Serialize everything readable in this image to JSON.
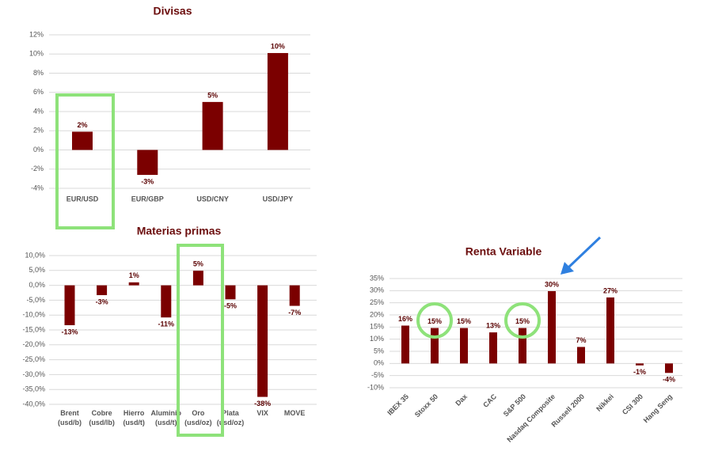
{
  "chart_data": [
    {
      "type": "bar",
      "title": "Divisas",
      "categories": [
        "EUR/USD",
        "EUR/GBP",
        "USD/CNY",
        "USD/JPY"
      ],
      "values": [
        1.9,
        -2.6,
        5.0,
        10.1
      ],
      "value_labels": [
        "2%",
        "-3%",
        "5%",
        "10%"
      ],
      "color": "#7b0000",
      "ylim": [
        -4,
        12
      ],
      "yticks": [
        {
          "value": -4,
          "label": "-4%"
        },
        {
          "value": -2,
          "label": "-2%"
        },
        {
          "value": 0,
          "label": "0%"
        },
        {
          "value": 2,
          "label": "2%"
        },
        {
          "value": 4,
          "label": "4%"
        },
        {
          "value": 6,
          "label": "6%"
        },
        {
          "value": 8,
          "label": "8%"
        },
        {
          "value": 10,
          "label": "10%"
        },
        {
          "value": 12,
          "label": "12%"
        }
      ],
      "grid": true
    },
    {
      "type": "bar",
      "title": "Materias primas",
      "categories": [
        "Brent\n(usd/b)",
        "Cobre\n(usd/lb)",
        "Hierro\n(usd/t)",
        "Aluminio\n(usd/t)",
        "Oro\n(usd/oz)",
        "Plata\n(usd/oz)",
        "VIX",
        "MOVE"
      ],
      "values": [
        -13.4,
        -3.3,
        1.0,
        -10.8,
        4.9,
        -4.7,
        -37.5,
        -6.9
      ],
      "value_labels": [
        "-13%",
        "-3%",
        "1%",
        "-11%",
        "5%",
        "-5%",
        "-38%",
        "-7%"
      ],
      "color": "#7b0000",
      "ylim": [
        -40,
        10
      ],
      "yticks": [
        {
          "value": -40,
          "label": "-40,0%"
        },
        {
          "value": -35,
          "label": "-35,0%"
        },
        {
          "value": -30,
          "label": "-30,0%"
        },
        {
          "value": -25,
          "label": "-25,0%"
        },
        {
          "value": -20,
          "label": "-20,0%"
        },
        {
          "value": -15,
          "label": "-15,0%"
        },
        {
          "value": -10,
          "label": "-10,0%"
        },
        {
          "value": -5,
          "label": "-5,0%"
        },
        {
          "value": 0,
          "label": "0,0%"
        },
        {
          "value": 5,
          "label": "5,0%"
        },
        {
          "value": 10,
          "label": "10,0%"
        }
      ],
      "grid": true
    },
    {
      "type": "bar",
      "title": "Renta Variable",
      "categories": [
        "IBEX 35",
        "Stoxx 50",
        "Dax",
        "CAC",
        "S&P 500",
        "Nasdaq Composite",
        "Russell 2000",
        "Nikkei",
        "CSI 300",
        "Hang Seng"
      ],
      "values": [
        15.6,
        14.6,
        14.6,
        12.8,
        14.6,
        29.8,
        6.8,
        27.2,
        -0.8,
        -3.9
      ],
      "value_labels": [
        "16%",
        "15%",
        "15%",
        "13%",
        "15%",
        "30%",
        "7%",
        "27%",
        "-1%",
        "-4%"
      ],
      "color": "#7b0000",
      "ylim": [
        -10,
        35
      ],
      "yticks": [
        {
          "value": -10,
          "label": "-10%"
        },
        {
          "value": -5,
          "label": "-5%"
        },
        {
          "value": 0,
          "label": "0%"
        },
        {
          "value": 5,
          "label": "5%"
        },
        {
          "value": 10,
          "label": "10%"
        },
        {
          "value": 15,
          "label": "15%"
        },
        {
          "value": 20,
          "label": "20%"
        },
        {
          "value": 25,
          "label": "25%"
        },
        {
          "value": 30,
          "label": "30%"
        },
        {
          "value": 35,
          "label": "35%"
        }
      ],
      "grid": true
    }
  ]
}
